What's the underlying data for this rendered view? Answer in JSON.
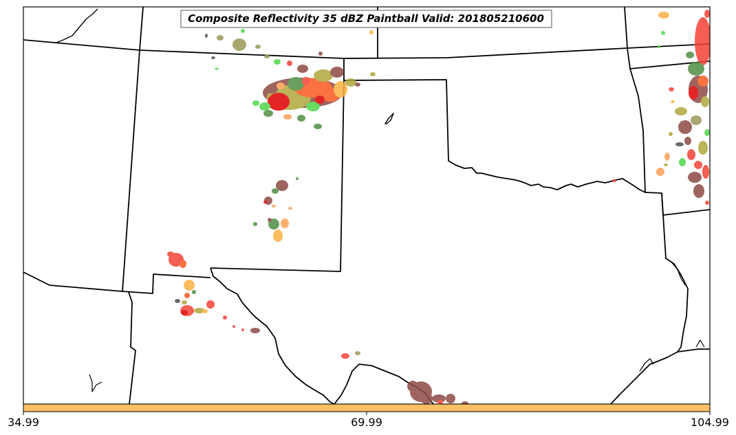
{
  "map": {
    "title": "Composite Reflectivity 35 dBZ Paintball Valid: 201805210600"
  },
  "colorbar": {
    "color": "#fdc062",
    "ticks": [
      "34.99",
      "69.99",
      "104.99"
    ]
  },
  "colors": {
    "red": "#f44336",
    "dark_red": "#e00000",
    "orange_red": "#f85a1e",
    "light_orange": "#fca058",
    "yellow_orange": "#fbb143",
    "olive": "#b0a83c",
    "khaki_olive": "#9a9858",
    "green": "#4fd64a",
    "dark_green": "#4f8f42",
    "brown": "#8e4a45",
    "dark_gray": "#505050"
  }
}
